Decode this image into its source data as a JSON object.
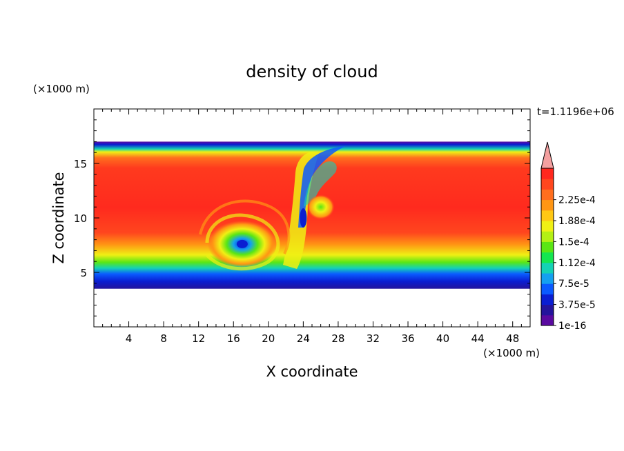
{
  "chart_data": {
    "type": "heatmap",
    "title": "density of cloud",
    "xlabel": "X coordinate",
    "ylabel": "Z coordinate",
    "x_unit": "(×1000 m)",
    "y_unit": "(×1000 m)",
    "time_label": "t=1.1196e+06",
    "xlim": [
      0,
      50
    ],
    "ylim": [
      0,
      20
    ],
    "x_ticks": [
      4,
      8,
      12,
      16,
      20,
      24,
      28,
      32,
      36,
      40,
      44,
      48
    ],
    "y_ticks": [
      5,
      10,
      15
    ],
    "cloud_layer": {
      "z_bottom": 3.5,
      "z_top": 17.0,
      "core_z_bottom": 7.5,
      "core_z_top": 14.5
    },
    "vortices": [
      {
        "x": 17.0,
        "z": 7.6,
        "value": 7.5e-05
      },
      {
        "x": 24.0,
        "z": 10.0,
        "value": 3.75e-05
      },
      {
        "x": 26.0,
        "z": 11.0,
        "value": 0.000188
      }
    ],
    "colorbar": {
      "levels": [
        "1e-16",
        "3.75e-5",
        "7.5e-5",
        "1.12e-4",
        "1.5e-4",
        "1.88e-4",
        "2.25e-4"
      ],
      "colors": [
        "#5a0aa0",
        "#24149c",
        "#0a1ed2",
        "#0a5aff",
        "#14a0f0",
        "#14d2b4",
        "#14e650",
        "#5ae614",
        "#b4f014",
        "#f0f014",
        "#ffc814",
        "#ff9614",
        "#ff6e1e",
        "#ff461e",
        "#ff281e"
      ],
      "overflow_color": "#f4a0a0"
    }
  }
}
